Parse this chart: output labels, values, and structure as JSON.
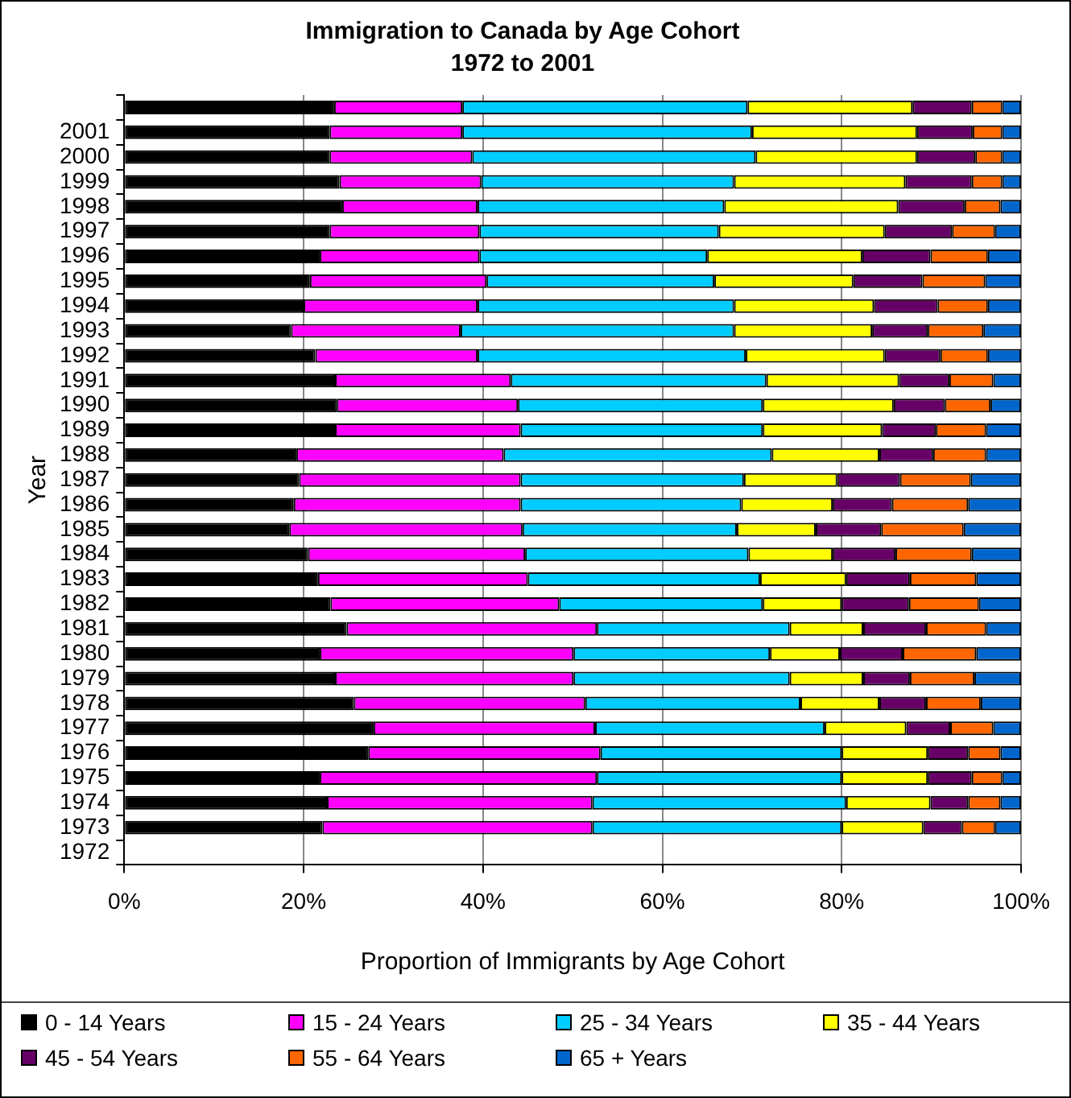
{
  "chart_data": {
    "type": "bar",
    "orientation": "horizontal",
    "stacked": true,
    "title": "Immigration to Canada by Age Cohort",
    "subtitle": "1972 to 2001",
    "xlabel": "Proportion of Immigrants by Age Cohort",
    "ylabel": "Year",
    "categories": [
      null,
      "2001",
      "2000",
      "1999",
      "1998",
      "1997",
      "1996",
      "1995",
      "1994",
      "1993",
      "1992",
      "1991",
      "1990",
      "1989",
      "1988",
      "1987",
      "1986",
      "1985",
      "1984",
      "1983",
      "1982",
      "1981",
      "1980",
      "1979",
      "1978",
      "1977",
      "1976",
      "1975",
      "1974",
      "1973",
      "1972"
    ],
    "xlim": [
      0,
      100
    ],
    "xticks": [
      {
        "value": 0,
        "label": "0%"
      },
      {
        "value": 20,
        "label": "20%"
      },
      {
        "value": 40,
        "label": "40%"
      },
      {
        "value": 60,
        "label": "60%"
      },
      {
        "value": 80,
        "label": "80%"
      },
      {
        "value": 100,
        "label": "100%"
      }
    ],
    "grid": "x",
    "legend": "bottom",
    "series": [
      {
        "name": "0 - 14 Years",
        "color": "#000000",
        "values": [
          23.4,
          22.9,
          22.9,
          24.0,
          24.3,
          22.9,
          21.8,
          20.7,
          20.0,
          18.6,
          21.3,
          23.5,
          23.7,
          23.5,
          19.2,
          19.5,
          18.9,
          18.4,
          20.5,
          21.6,
          23.0,
          24.8,
          21.8,
          23.5,
          25.6,
          27.8,
          27.2,
          21.8,
          22.6,
          22.1,
          null
        ]
      },
      {
        "name": "15 - 24 Years",
        "color": "#ff00ff",
        "values": [
          14.3,
          14.8,
          15.9,
          15.8,
          15.1,
          16.7,
          17.8,
          19.7,
          19.4,
          18.9,
          18.1,
          19.6,
          20.2,
          20.7,
          23.1,
          24.7,
          25.3,
          26.0,
          24.2,
          23.4,
          25.5,
          27.9,
          28.3,
          26.6,
          25.8,
          24.7,
          25.9,
          30.9,
          29.6,
          30.1,
          null
        ]
      },
      {
        "name": "25 - 34 Years",
        "color": "#00ccff",
        "values": [
          31.8,
          32.3,
          31.6,
          28.2,
          27.5,
          26.7,
          25.4,
          25.4,
          28.6,
          30.5,
          29.9,
          28.5,
          27.3,
          27.0,
          29.9,
          24.9,
          24.6,
          23.9,
          24.9,
          25.9,
          22.7,
          21.5,
          21.9,
          24.1,
          24.0,
          25.6,
          26.9,
          27.3,
          28.3,
          27.8,
          null
        ]
      },
      {
        "name": "35 - 44 Years",
        "color": "#ffff00",
        "values": [
          18.4,
          18.4,
          18.0,
          19.1,
          19.4,
          18.5,
          17.3,
          15.5,
          15.6,
          15.4,
          15.5,
          14.8,
          14.6,
          13.3,
          12.0,
          10.4,
          10.2,
          8.8,
          9.4,
          9.6,
          8.8,
          8.2,
          7.8,
          8.2,
          8.8,
          9.1,
          9.6,
          9.6,
          9.4,
          9.1,
          null
        ]
      },
      {
        "name": "45 - 54 Years",
        "color": "#660066",
        "values": [
          6.6,
          6.2,
          6.5,
          7.4,
          7.4,
          7.5,
          7.6,
          7.7,
          7.1,
          6.2,
          6.2,
          5.6,
          5.7,
          6.0,
          6.0,
          7.0,
          6.6,
          7.3,
          7.0,
          7.1,
          7.5,
          7.0,
          7.0,
          5.2,
          5.2,
          4.9,
          4.5,
          4.9,
          4.2,
          4.3,
          null
        ]
      },
      {
        "name": "55 - 64 Years",
        "color": "#ff6600",
        "values": [
          3.4,
          3.3,
          3.0,
          3.4,
          4.0,
          4.8,
          6.4,
          7.0,
          5.6,
          6.2,
          5.3,
          4.9,
          5.1,
          5.6,
          5.9,
          7.9,
          8.5,
          9.2,
          8.5,
          7.4,
          7.8,
          6.7,
          8.2,
          7.2,
          6.1,
          4.8,
          3.6,
          3.4,
          3.6,
          3.7,
          null
        ]
      },
      {
        "name": "65 + Years",
        "color": "#0066cc",
        "values": [
          2.1,
          2.1,
          2.1,
          2.1,
          2.3,
          2.9,
          3.7,
          4.0,
          3.7,
          4.2,
          3.7,
          3.1,
          3.4,
          3.9,
          3.9,
          5.6,
          5.9,
          6.4,
          5.5,
          5.0,
          4.7,
          3.9,
          5.0,
          5.2,
          4.5,
          3.1,
          2.3,
          2.1,
          2.3,
          2.9,
          null
        ]
      }
    ]
  }
}
